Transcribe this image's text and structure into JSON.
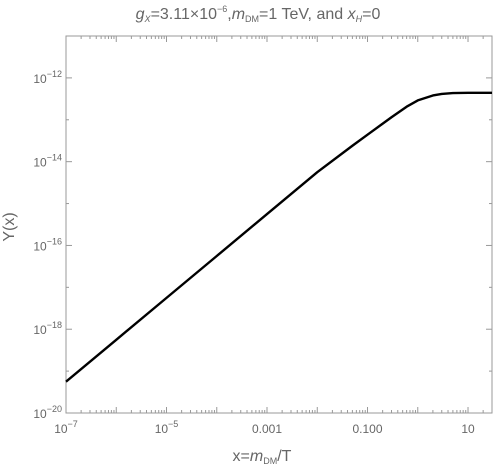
{
  "chart_data": {
    "type": "line",
    "title": {
      "g_sym": "g",
      "g_sub": "X",
      "g_val": "=3.11×10",
      "g_exp": "−6",
      "sep1": ",",
      "m_sym": "m",
      "m_sub": "DM",
      "m_val": "=1 TeV, and",
      "x_sym": "x",
      "x_sub": "H",
      "x_val": "=0"
    },
    "xlabel": {
      "pre": "x=",
      "m_sym": "m",
      "m_sub": "DM",
      "post": "/T"
    },
    "ylabel": "Y(x)",
    "x_scale": "log",
    "y_scale": "log",
    "xlim": [
      1e-07,
      30
    ],
    "ylim": [
      1e-20,
      1e-11
    ],
    "x_ticks": [
      {
        "value": 1e-07,
        "base": "10",
        "exp": "−7"
      },
      {
        "value": 1e-05,
        "base": "10",
        "exp": "−5"
      },
      {
        "value": 0.001,
        "label": "0.001"
      },
      {
        "value": 0.1,
        "label": "0.100"
      },
      {
        "value": 10,
        "label": "10"
      }
    ],
    "y_ticks": [
      {
        "value": 1e-20,
        "base": "10",
        "exp": "−20"
      },
      {
        "value": 1e-18,
        "base": "10",
        "exp": "−18"
      },
      {
        "value": 1e-16,
        "base": "10",
        "exp": "−16"
      },
      {
        "value": 1e-14,
        "base": "10",
        "exp": "−14"
      },
      {
        "value": 1e-12,
        "base": "10",
        "exp": "−12"
      }
    ],
    "series": [
      {
        "color": "#000000",
        "points": [
          [
            1e-07,
            5.6e-20
          ],
          [
            1e-06,
            5.6e-19
          ],
          [
            1e-05,
            5.6e-18
          ],
          [
            0.0001,
            5.6e-17
          ],
          [
            0.001,
            5.6e-16
          ],
          [
            0.01,
            5.6e-15
          ],
          [
            0.05,
            2.4e-14
          ],
          [
            0.1,
            4.4e-14
          ],
          [
            0.3,
            1.15e-13
          ],
          [
            0.6,
            2.05e-13
          ],
          [
            1.0,
            2.9e-13
          ],
          [
            2.0,
            3.8e-13
          ],
          [
            3.0,
            4.15e-13
          ],
          [
            5.0,
            4.35e-13
          ],
          [
            10,
            4.4e-13
          ],
          [
            30,
            4.4e-13
          ]
        ]
      }
    ]
  }
}
